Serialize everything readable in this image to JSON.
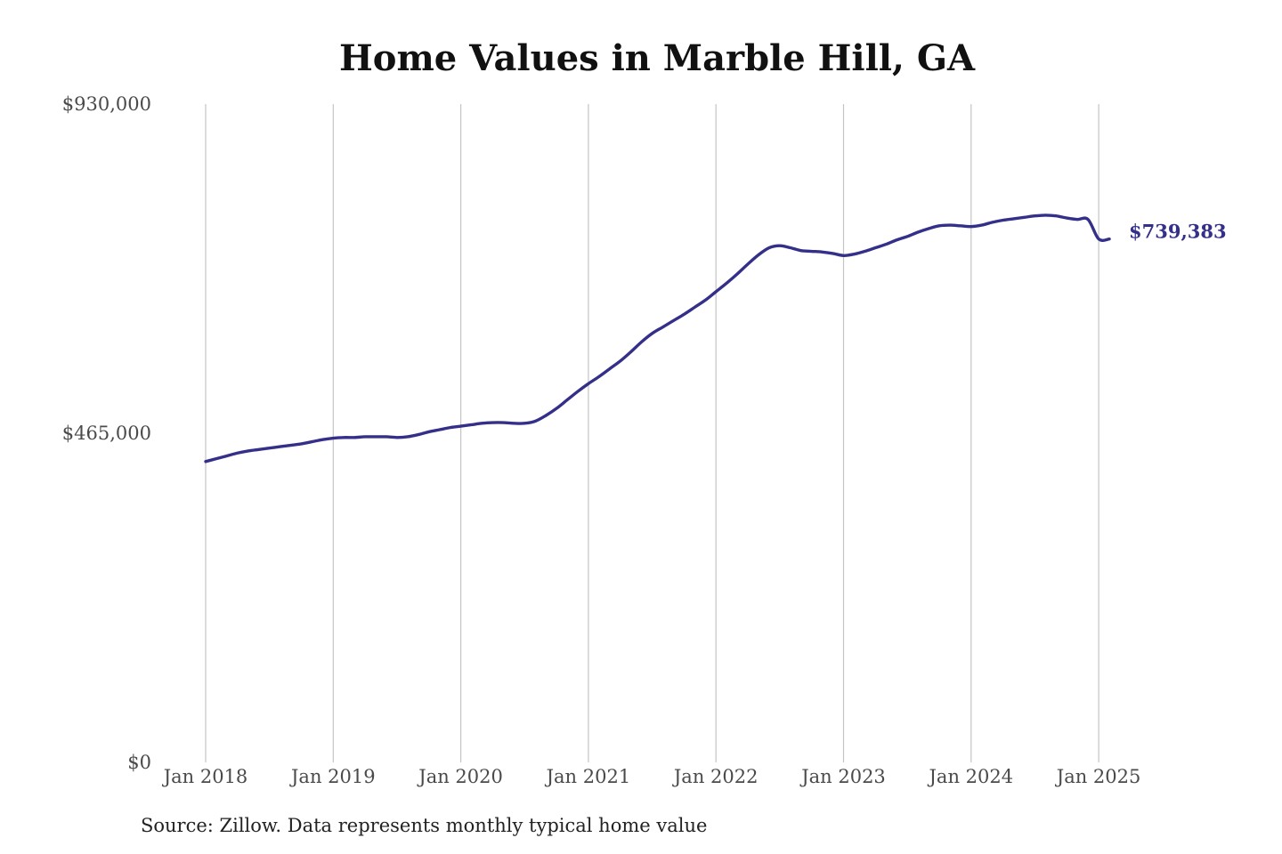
{
  "colors": {
    "series": "#34308a",
    "grid": "#c4c4c4",
    "text": "#4a4a4a",
    "title": "#111111"
  },
  "chart_data": {
    "type": "line",
    "title": "Home Values in Marble Hill, GA",
    "xlabel": "",
    "ylabel": "",
    "grid": "vertical",
    "legend": "none",
    "ylim": [
      0,
      930000
    ],
    "y_ticks": [
      {
        "value": 0,
        "label": "$0"
      },
      {
        "value": 465000,
        "label": "$465,000"
      },
      {
        "value": 930000,
        "label": "$930,000"
      }
    ],
    "x_ticks": [
      {
        "value": "2018-01",
        "label": "Jan 2018"
      },
      {
        "value": "2019-01",
        "label": "Jan 2019"
      },
      {
        "value": "2020-01",
        "label": "Jan 2020"
      },
      {
        "value": "2021-01",
        "label": "Jan 2021"
      },
      {
        "value": "2022-01",
        "label": "Jan 2022"
      },
      {
        "value": "2023-01",
        "label": "Jan 2023"
      },
      {
        "value": "2024-01",
        "label": "Jan 2024"
      },
      {
        "value": "2025-01",
        "label": "Jan 2025"
      }
    ],
    "end_label": "$739,383",
    "series": [
      {
        "x": [
          "2018-01",
          "2018-02",
          "2018-03",
          "2018-04",
          "2018-05",
          "2018-06",
          "2018-07",
          "2018-08",
          "2018-09",
          "2018-10",
          "2018-11",
          "2018-12",
          "2019-01",
          "2019-02",
          "2019-03",
          "2019-04",
          "2019-05",
          "2019-06",
          "2019-07",
          "2019-08",
          "2019-09",
          "2019-10",
          "2019-11",
          "2019-12",
          "2020-01",
          "2020-02",
          "2020-03",
          "2020-04",
          "2020-05",
          "2020-06",
          "2020-07",
          "2020-08",
          "2020-09",
          "2020-10",
          "2020-11",
          "2020-12",
          "2021-01",
          "2021-02",
          "2021-03",
          "2021-04",
          "2021-05",
          "2021-06",
          "2021-07",
          "2021-08",
          "2021-09",
          "2021-10",
          "2021-11",
          "2021-12",
          "2022-01",
          "2022-02",
          "2022-03",
          "2022-04",
          "2022-05",
          "2022-06",
          "2022-07",
          "2022-08",
          "2022-09",
          "2022-10",
          "2022-11",
          "2022-12",
          "2023-01",
          "2023-02",
          "2023-03",
          "2023-04",
          "2023-05",
          "2023-06",
          "2023-07",
          "2023-08",
          "2023-09",
          "2023-10",
          "2023-11",
          "2023-12",
          "2024-01",
          "2024-02",
          "2024-03",
          "2024-04",
          "2024-05",
          "2024-06",
          "2024-07",
          "2024-08",
          "2024-09",
          "2024-10",
          "2024-11",
          "2024-12",
          "2025-01",
          "2025-02"
        ],
        "values": [
          425000,
          429000,
          433000,
          437000,
          440000,
          442000,
          444000,
          446000,
          448000,
          450000,
          453000,
          456000,
          458000,
          459000,
          459000,
          460000,
          460000,
          460000,
          459000,
          460000,
          463000,
          467000,
          470000,
          473000,
          475000,
          477000,
          479000,
          480000,
          480000,
          479000,
          479000,
          482000,
          490000,
          500000,
          512000,
          524000,
          535000,
          545000,
          556000,
          567000,
          580000,
          594000,
          606000,
          615000,
          624000,
          633000,
          643000,
          653000,
          665000,
          677000,
          690000,
          704000,
          717000,
          727000,
          730000,
          727000,
          723000,
          722000,
          721000,
          719000,
          716000,
          718000,
          722000,
          727000,
          732000,
          738000,
          743000,
          749000,
          754000,
          758000,
          759000,
          758000,
          757000,
          759000,
          763000,
          766000,
          768000,
          770000,
          772000,
          773000,
          772000,
          769000,
          767000,
          767000,
          739383,
          739383
        ]
      }
    ]
  },
  "source_note": "Source: Zillow. Data represents monthly typical home value"
}
